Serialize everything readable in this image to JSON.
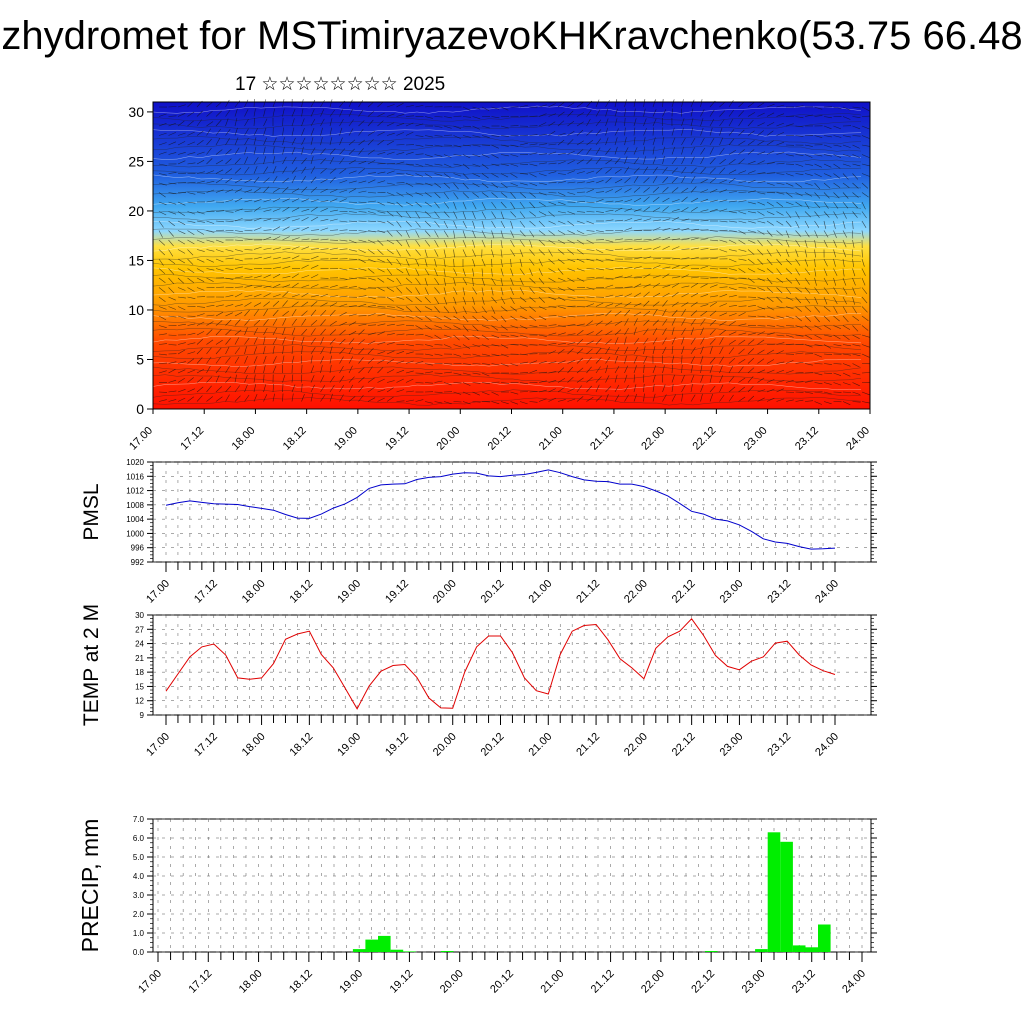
{
  "header": {
    "title": "zhydromet for MSTimiryazevoKHKravchenko(53.75 66.48",
    "subtitle": "17 ☆☆☆☆☆☆☆☆ 2025"
  },
  "colors": {
    "pmsl_line": "#0000cc",
    "temp_line": "#e00000",
    "precip_bar": "#00ee00",
    "cross_section_top": "#1010c8",
    "cross_section_bottom": "#ff1000"
  },
  "chart_data": [
    {
      "type": "heatmap",
      "name": "vertical cross-section",
      "x_ticks": [
        "17.00",
        "17.12",
        "18.00",
        "18.12",
        "19.00",
        "19.12",
        "20.00",
        "20.12",
        "21.00",
        "21.12",
        "22.00",
        "22.12",
        "23.00",
        "23.12",
        "24.00"
      ],
      "y_ticks": [
        "0",
        "5",
        "10",
        "15",
        "20",
        "25",
        "30"
      ],
      "ylim": [
        0,
        31
      ],
      "colormap": "red (low levels) through orange and yellow to light blue and dark blue (upper levels)",
      "overlay": "wind barbs"
    },
    {
      "type": "line",
      "ylabel": "PMSL",
      "x_ticks": [
        "17.00",
        "17.12",
        "18.00",
        "18.12",
        "19.00",
        "19.12",
        "20.00",
        "20.12",
        "21.00",
        "21.12",
        "22.00",
        "22.12",
        "23.00",
        "23.12",
        "24.00"
      ],
      "y_ticks": [
        "1020",
        "1016",
        "1012",
        "1008",
        "1004",
        "1000",
        "996",
        "992"
      ],
      "ylim": [
        992,
        1020
      ],
      "grid": true,
      "x": [
        0,
        1,
        2,
        3,
        4,
        5,
        6,
        7,
        8,
        9,
        10,
        11,
        12,
        13,
        14,
        15,
        16,
        17,
        18,
        19,
        20,
        21,
        22,
        23,
        24,
        25,
        26,
        27,
        28,
        29,
        30,
        31,
        32,
        33,
        34,
        35,
        36,
        37,
        38,
        39,
        40,
        41,
        42,
        43,
        44,
        45,
        46,
        47,
        48,
        49,
        50,
        51,
        52,
        53,
        54,
        55,
        56
      ],
      "values": [
        1007.9,
        1008.6,
        1009.1,
        1008.7,
        1008.3,
        1008.2,
        1008.1,
        1007.5,
        1007.0,
        1006.5,
        1005.3,
        1004.3,
        1004.2,
        1005.4,
        1007.1,
        1008.3,
        1010.1,
        1012.6,
        1013.6,
        1013.8,
        1013.9,
        1015.1,
        1015.7,
        1015.9,
        1016.6,
        1017.0,
        1016.9,
        1016.1,
        1015.9,
        1016.3,
        1016.5,
        1017.1,
        1017.8,
        1017.0,
        1015.9,
        1015.0,
        1014.6,
        1014.5,
        1013.8,
        1013.8,
        1013.1,
        1011.9,
        1010.5,
        1008.4,
        1006.2,
        1005.4,
        1004.0,
        1003.5,
        1002.4,
        1000.6,
        998.5,
        997.6,
        997.2,
        996.3,
        995.6,
        995.7,
        995.9
      ]
    },
    {
      "type": "line",
      "ylabel": "TEMP at 2 M",
      "x_ticks": [
        "17.00",
        "17.12",
        "18.00",
        "18.12",
        "19.00",
        "19.12",
        "20.00",
        "20.12",
        "21.00",
        "21.12",
        "22.00",
        "22.12",
        "23.00",
        "23.12",
        "24.00"
      ],
      "y_ticks": [
        "30",
        "27",
        "24",
        "21",
        "18",
        "15",
        "12",
        "9"
      ],
      "ylim": [
        9,
        30
      ],
      "grid": true,
      "x": [
        0,
        1,
        2,
        3,
        4,
        5,
        6,
        7,
        8,
        9,
        10,
        11,
        12,
        13,
        14,
        15,
        16,
        17,
        18,
        19,
        20,
        21,
        22,
        23,
        24,
        25,
        26,
        27,
        28,
        29,
        30,
        31,
        32,
        33,
        34,
        35,
        36,
        37,
        38,
        39,
        40,
        41,
        42,
        43,
        44,
        45,
        46,
        47,
        48,
        49,
        50,
        51,
        52,
        53,
        54,
        55,
        56
      ],
      "values": [
        14.0,
        17.6,
        21.2,
        23.3,
        23.9,
        21.6,
        16.8,
        16.5,
        16.8,
        19.8,
        24.9,
        26.0,
        26.6,
        21.7,
        18.9,
        14.6,
        10.3,
        15.1,
        18.2,
        19.4,
        19.6,
        16.9,
        12.6,
        10.5,
        10.4,
        18.0,
        23.3,
        25.6,
        25.6,
        22.1,
        16.8,
        14.1,
        13.4,
        21.7,
        26.6,
        27.8,
        28.0,
        24.8,
        20.8,
        18.9,
        16.6,
        23.0,
        25.4,
        26.6,
        29.2,
        25.7,
        21.5,
        19.2,
        18.5,
        20.3,
        21.2,
        24.1,
        24.5,
        21.6,
        19.5,
        18.3,
        17.5
      ]
    },
    {
      "type": "bar",
      "ylabel": "PRECIP, mm",
      "x_ticks": [
        "17.00",
        "17.12",
        "18.00",
        "18.12",
        "19.00",
        "19.12",
        "20.00",
        "20.12",
        "21.00",
        "21.12",
        "22.00",
        "22.12",
        "23.00",
        "23.12",
        "24.00"
      ],
      "y_ticks": [
        "7.0",
        "6.0",
        "5.0",
        "4.0",
        "3.0",
        "2.0",
        "1.0",
        "0.0"
      ],
      "ylim": [
        0,
        7
      ],
      "grid": true,
      "x": [
        16,
        17,
        18,
        19,
        20,
        23,
        44,
        48,
        49,
        50,
        51,
        52,
        53
      ],
      "values": [
        0.15,
        0.65,
        0.85,
        0.12,
        0.03,
        0.05,
        0.05,
        0.15,
        6.3,
        5.8,
        0.35,
        0.25,
        1.45
      ]
    }
  ]
}
